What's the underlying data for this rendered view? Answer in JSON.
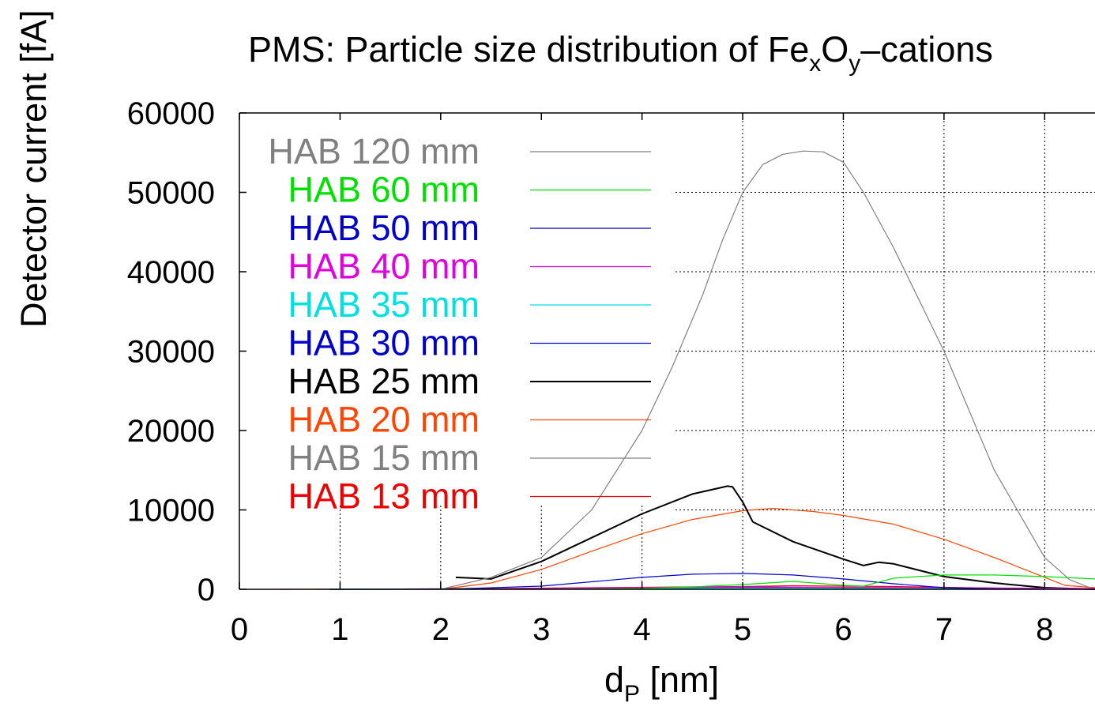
{
  "chart_data": {
    "type": "line",
    "title": {
      "main": "PMS: Particle size distribution of Fe",
      "sub1": "x",
      "mid": "O",
      "sub2": "y",
      "tail": "–cations"
    },
    "xlabel": {
      "main": "d",
      "sub": "P",
      "tail": " [nm]"
    },
    "ylabel": "Detector current [fA]",
    "xlim": [
      0,
      8.5
    ],
    "ylim": [
      0,
      60000
    ],
    "xticks": [
      "0",
      "1",
      "2",
      "3",
      "4",
      "5",
      "6",
      "7",
      "8"
    ],
    "yticks": [
      "0",
      "10000",
      "20000",
      "30000",
      "40000",
      "50000",
      "60000"
    ],
    "grid": true,
    "legend_position": "top-left",
    "series": [
      {
        "name": "HAB 120 mm",
        "color": "#808080",
        "width": 1.2,
        "x": [
          2.0,
          2.5,
          3.0,
          3.5,
          4.0,
          4.3,
          4.6,
          4.8,
          5.0,
          5.2,
          5.4,
          5.6,
          5.8,
          6.0,
          6.2,
          6.5,
          7.0,
          7.5,
          8.0,
          8.25,
          8.45
        ],
        "y": [
          0,
          1500,
          4000,
          10000,
          20000,
          28000,
          37000,
          44000,
          50000,
          53500,
          54800,
          55200,
          55100,
          53800,
          50000,
          43000,
          30000,
          15000,
          4000,
          1200,
          200
        ]
      },
      {
        "name": "HAB 60 mm",
        "color": "#00e000",
        "width": 1.2,
        "x": [
          0.9,
          2.0,
          3.0,
          4.0,
          4.5,
          5.0,
          5.5,
          6.0,
          6.2,
          6.5,
          7.0,
          7.5,
          8.0,
          8.5
        ],
        "y": [
          0,
          0,
          0,
          100,
          300,
          600,
          1000,
          500,
          400,
          1400,
          1800,
          1800,
          1600,
          1300
        ]
      },
      {
        "name": "HAB 50 mm",
        "color": "#0000cc",
        "width": 1.2,
        "x": [
          0.9,
          2.0,
          3.0,
          4.0,
          4.5,
          5.0,
          5.5,
          6.0,
          6.5,
          7.0,
          7.5,
          8.0
        ],
        "y": [
          0,
          0,
          400,
          1500,
          1900,
          2000,
          1800,
          1300,
          700,
          200,
          50,
          0
        ]
      },
      {
        "name": "HAB 40 mm",
        "color": "#e000e0",
        "width": 1.2,
        "x": [
          0.9,
          3.0,
          5.0,
          7.0,
          8.5
        ],
        "y": [
          0,
          100,
          300,
          200,
          100
        ]
      },
      {
        "name": "HAB 35 mm",
        "color": "#00e0e0",
        "width": 1.2,
        "x": [
          0.9,
          3.0,
          5.0,
          7.0,
          8.5
        ],
        "y": [
          0,
          50,
          150,
          100,
          50
        ]
      },
      {
        "name": "HAB 30 mm",
        "color": "#0000cc",
        "width": 1.2,
        "x": [
          0.9,
          3.0,
          5.0,
          7.0,
          8.5
        ],
        "y": [
          0,
          100,
          250,
          150,
          50
        ]
      },
      {
        "name": "HAB 25 mm",
        "color": "#000000",
        "width": 2,
        "x": [
          2.15,
          2.5,
          3.0,
          3.5,
          4.0,
          4.5,
          4.85,
          4.9,
          5.0,
          5.1,
          5.5,
          6.0,
          6.2,
          6.35,
          6.5,
          7.0,
          7.5,
          8.0,
          8.5
        ],
        "y": [
          1500,
          1300,
          3500,
          6500,
          9500,
          12000,
          13000,
          12900,
          11000,
          8500,
          6000,
          3800,
          3000,
          3400,
          3200,
          1600,
          800,
          200,
          0
        ]
      },
      {
        "name": "HAB 20 mm",
        "color": "#ff4500",
        "width": 1.2,
        "x": [
          2.0,
          2.5,
          3.0,
          3.5,
          4.0,
          4.5,
          5.0,
          5.3,
          5.7,
          6.0,
          6.5,
          7.0,
          7.5,
          8.0,
          8.2,
          8.5
        ],
        "y": [
          0,
          800,
          2500,
          4800,
          7000,
          8800,
          9900,
          10200,
          9800,
          9300,
          8200,
          6300,
          4000,
          1500,
          500,
          200
        ]
      },
      {
        "name": "HAB 15 mm",
        "color": "#808080",
        "width": 1.2,
        "x": [
          0.9,
          3.0,
          5.0,
          7.0,
          8.5
        ],
        "y": [
          0,
          50,
          100,
          50,
          0
        ]
      },
      {
        "name": "HAB 13 mm",
        "color": "#ee0000",
        "width": 1.2,
        "x": [
          0.4,
          2.0,
          3.0,
          4.0,
          5.0,
          5.5,
          6.0,
          6.5,
          7.0,
          7.5,
          8.0,
          8.5
        ],
        "y": [
          0,
          50,
          150,
          250,
          350,
          450,
          400,
          350,
          250,
          150,
          50,
          0
        ]
      }
    ]
  }
}
